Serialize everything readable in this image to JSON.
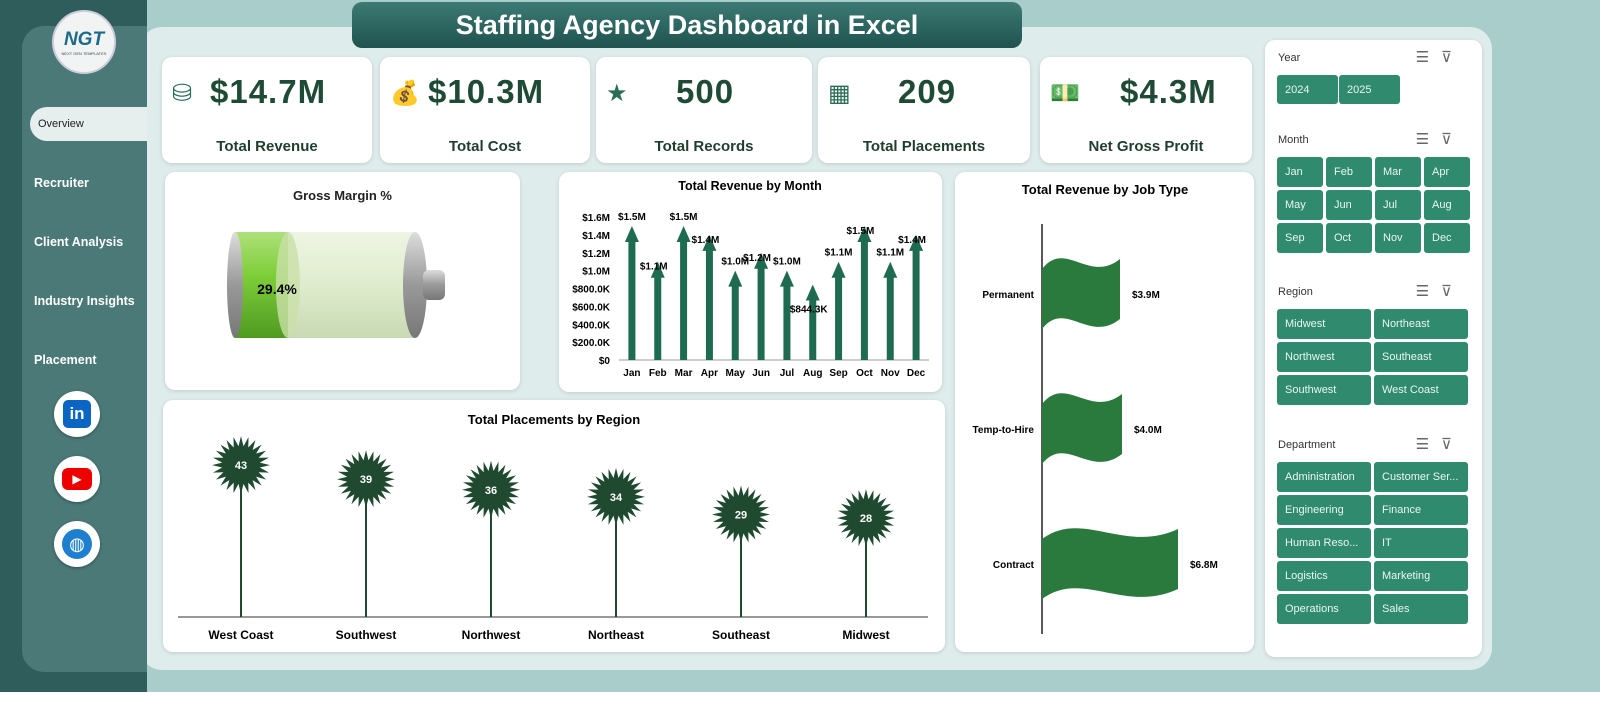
{
  "title": "Staffing Agency Dashboard in Excel",
  "logo": {
    "text": "NGT",
    "tagline": "NEXT GEN TEMPLATES"
  },
  "nav": [
    "Overview",
    "Recruiter",
    "Client Analysis",
    "Industry Insights",
    "Placement"
  ],
  "active_nav": "Overview",
  "social": [
    "linkedin-icon",
    "youtube-icon",
    "globe-icon"
  ],
  "kpis": [
    {
      "value": "$14.7M",
      "label": "Total Revenue",
      "icon": "coins-icon"
    },
    {
      "value": "$10.3M",
      "label": "Total Cost",
      "icon": "money-bag-icon"
    },
    {
      "value": "500",
      "label": "Total Records",
      "icon": "star-icon"
    },
    {
      "value": "209",
      "label": "Total Placements",
      "icon": "gold-bars-icon"
    },
    {
      "value": "$4.3M",
      "label": "Net Gross Profit",
      "icon": "cash-icon"
    }
  ],
  "gross_margin": {
    "title": "Gross Margin %",
    "value": 29.4,
    "label": "29.4%"
  },
  "chart_data": [
    {
      "type": "bar",
      "title": "Total Revenue by Month",
      "categories": [
        "Jan",
        "Feb",
        "Mar",
        "Apr",
        "May",
        "Jun",
        "Jul",
        "Aug",
        "Sep",
        "Oct",
        "Nov",
        "Dec"
      ],
      "values": [
        1.5,
        1.1,
        1.5,
        1.4,
        1.0,
        1.2,
        1.0,
        0.8443,
        1.1,
        1.5,
        1.1,
        1.4
      ],
      "data_labels": [
        "$1.5M",
        "$1.1M",
        "$1.5M",
        "$1.4M",
        "$1.0M",
        "$1.2M",
        "$1.0M",
        "$844.3K",
        "$1.1M",
        "$1.5M",
        "$1.1M",
        "$1.4M"
      ],
      "yticks": [
        "$0",
        "$200.0K",
        "$400.0K",
        "$600.0K",
        "$800.0K",
        "$1.0M",
        "$1.2M",
        "$1.4M",
        "$1.6M"
      ],
      "ylim": [
        0,
        1.6
      ],
      "unit": "M",
      "color": "#1f6b52"
    },
    {
      "type": "bar",
      "title": "Total Placements by Region",
      "categories": [
        "West Coast",
        "Southwest",
        "Northwest",
        "Northeast",
        "Southeast",
        "Midwest"
      ],
      "values": [
        43,
        39,
        36,
        34,
        29,
        28
      ],
      "color": "#1f4a30"
    },
    {
      "type": "bar",
      "orientation": "horizontal",
      "title": "Total Revenue by Job Type",
      "categories": [
        "Permanent",
        "Temp-to-Hire",
        "Contract"
      ],
      "values": [
        3.9,
        4.0,
        6.8
      ],
      "data_labels": [
        "$3.9M",
        "$4.0M",
        "$6.8M"
      ],
      "color": "#2a7a3e"
    }
  ],
  "slicers": [
    {
      "title": "Year",
      "items": [
        "2024",
        "2025"
      ],
      "cols": 2
    },
    {
      "title": "Month",
      "items": [
        "Jan",
        "Feb",
        "Mar",
        "Apr",
        "May",
        "Jun",
        "Jul",
        "Aug",
        "Sep",
        "Oct",
        "Nov",
        "Dec"
      ],
      "cols": 4
    },
    {
      "title": "Region",
      "items": [
        "Midwest",
        "Northeast",
        "Northwest",
        "Southeast",
        "Southwest",
        "West Coast"
      ],
      "cols": 2
    },
    {
      "title": "Department",
      "items": [
        "Administration",
        "Customer Ser...",
        "Engineering",
        "Finance",
        "Human Reso...",
        "IT",
        "Logistics",
        "Marketing",
        "Operations",
        "Sales"
      ],
      "cols": 2
    }
  ]
}
